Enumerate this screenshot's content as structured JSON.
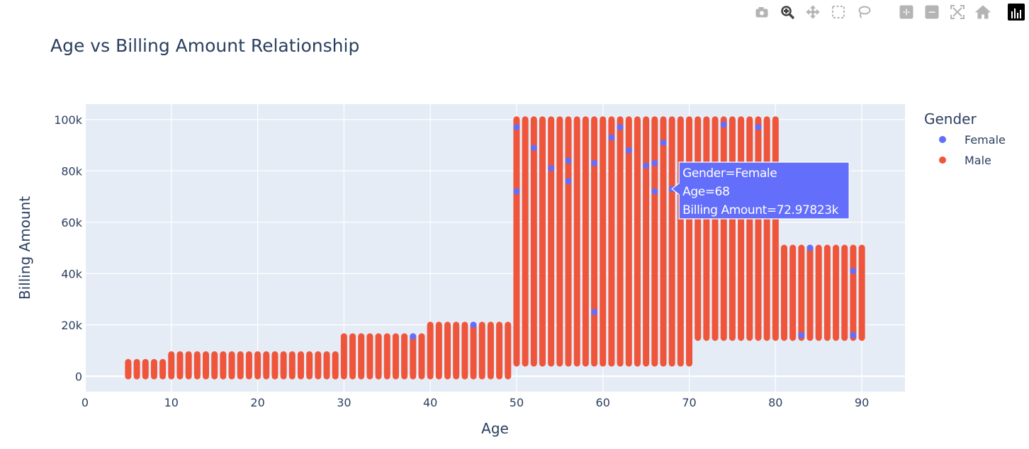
{
  "modebar": {
    "buttons": [
      {
        "name": "camera-icon",
        "label": "Download plot as a png"
      },
      {
        "name": "zoom-icon",
        "label": "Zoom"
      },
      {
        "name": "pan-icon",
        "label": "Pan"
      },
      {
        "name": "box-select-icon",
        "label": "Box Select"
      },
      {
        "name": "lasso-select-icon",
        "label": "Lasso Select"
      },
      {
        "name": "zoom-in-icon",
        "label": "Zoom in"
      },
      {
        "name": "zoom-out-icon",
        "label": "Zoom out"
      },
      {
        "name": "autoscale-icon",
        "label": "Autoscale"
      },
      {
        "name": "reset-axes-icon",
        "label": "Reset axes"
      },
      {
        "name": "plotly-logo-icon",
        "label": "Produced with Plotly"
      }
    ],
    "active_color": "#444444",
    "inactive_color": "#b4b4b4"
  },
  "chart_data": {
    "type": "scatter",
    "title": "Age vs Billing Amount Relationship",
    "xlabel": "Age",
    "ylabel": "Billing Amount",
    "xlim": [
      0,
      95
    ],
    "ylim": [
      -6000,
      106000
    ],
    "x_ticks": [
      0,
      10,
      20,
      30,
      40,
      50,
      60,
      70,
      80,
      90
    ],
    "x_tick_labels": [
      "0",
      "10",
      "20",
      "30",
      "40",
      "50",
      "60",
      "70",
      "80",
      "90"
    ],
    "y_ticks": [
      0,
      20000,
      40000,
      60000,
      80000,
      100000
    ],
    "y_tick_labels": [
      "0",
      "20k",
      "40k",
      "60k",
      "80k",
      "100k"
    ],
    "grid": true,
    "plot_bgcolor": "#E5ECF6",
    "legend": {
      "title": "Gender",
      "position": "right"
    },
    "series": [
      {
        "name": "Female",
        "color": "#636EFA"
      },
      {
        "name": "Male",
        "color": "#EF553B"
      }
    ],
    "age_ranges": [
      {
        "age_from": 5,
        "age_to": 9,
        "billing_min": 0,
        "billing_max": 5500
      },
      {
        "age_from": 10,
        "age_to": 29,
        "billing_min": 0,
        "billing_max": 8500
      },
      {
        "age_from": 30,
        "age_to": 39,
        "billing_min": 0,
        "billing_max": 15500
      },
      {
        "age_from": 40,
        "age_to": 49,
        "billing_min": 0,
        "billing_max": 20000
      },
      {
        "age_from": 50,
        "age_to": 69,
        "billing_min": 5000,
        "billing_max": 100000
      },
      {
        "age_from": 70,
        "age_to": 70,
        "billing_min": 5000,
        "billing_max": 100000
      },
      {
        "age_from": 71,
        "age_to": 80,
        "billing_min": 15000,
        "billing_max": 100000
      },
      {
        "age_from": 81,
        "age_to": 90,
        "billing_min": 15000,
        "billing_max": 50000
      }
    ],
    "female_points": [
      {
        "x": 50,
        "y": 97000
      },
      {
        "x": 50,
        "y": 72000
      },
      {
        "x": 52,
        "y": 89000
      },
      {
        "x": 54,
        "y": 81000
      },
      {
        "x": 56,
        "y": 76000
      },
      {
        "x": 56,
        "y": 84000
      },
      {
        "x": 59,
        "y": 83000
      },
      {
        "x": 59,
        "y": 25000
      },
      {
        "x": 61,
        "y": 93000
      },
      {
        "x": 62,
        "y": 97000
      },
      {
        "x": 63,
        "y": 88000
      },
      {
        "x": 65,
        "y": 82000
      },
      {
        "x": 66,
        "y": 72000
      },
      {
        "x": 66,
        "y": 83000
      },
      {
        "x": 67,
        "y": 91000
      },
      {
        "x": 68,
        "y": 72978
      },
      {
        "x": 74,
        "y": 98000
      },
      {
        "x": 78,
        "y": 97000
      },
      {
        "x": 84,
        "y": 50000
      },
      {
        "x": 83,
        "y": 16000
      },
      {
        "x": 89,
        "y": 41000
      },
      {
        "x": 89,
        "y": 16000
      },
      {
        "x": 38,
        "y": 15500
      },
      {
        "x": 45,
        "y": 20000
      }
    ],
    "hover": {
      "line1": "Gender=Female",
      "line2": "Age=68",
      "line3": "Billing Amount=72.97823k",
      "x": 68,
      "y": 72978.23
    }
  }
}
